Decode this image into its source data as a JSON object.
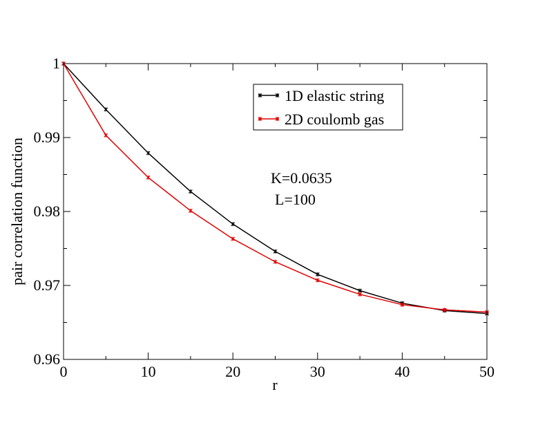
{
  "chart_data": {
    "type": "line",
    "xlabel": "r",
    "ylabel": "pair correlation function",
    "xlim": [
      0,
      50
    ],
    "ylim": [
      0.96,
      1.0
    ],
    "xticks": [
      0,
      10,
      20,
      30,
      40,
      50
    ],
    "xtick_labels": [
      "0",
      "10",
      "20",
      "30",
      "40",
      "50"
    ],
    "yticks": [
      0.96,
      0.97,
      0.98,
      0.99,
      1.0
    ],
    "ytick_labels": [
      "0.96",
      "0.97",
      "0.98",
      "0.99",
      "1"
    ],
    "grid": false,
    "legend_position": "top-right",
    "x": [
      0,
      5,
      10,
      15,
      20,
      25,
      30,
      35,
      40,
      45,
      50
    ],
    "series": [
      {
        "name": "1D elastic string",
        "color": "#000000",
        "values": [
          1.0,
          0.9938,
          0.9879,
          0.9827,
          0.9783,
          0.9746,
          0.9715,
          0.9693,
          0.9676,
          0.9666,
          0.9662
        ]
      },
      {
        "name": "2D coulomb gas",
        "color": "#e00000",
        "values": [
          1.0,
          0.9903,
          0.9846,
          0.9801,
          0.9763,
          0.9732,
          0.9707,
          0.9688,
          0.9674,
          0.9667,
          0.9664
        ]
      }
    ],
    "annotations": [
      "K=0.0635",
      "L=100"
    ]
  }
}
